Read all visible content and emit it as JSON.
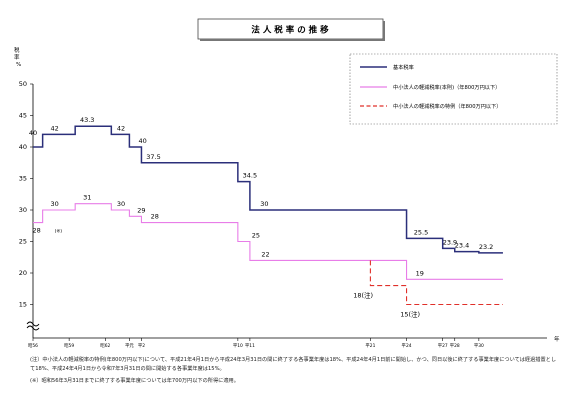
{
  "chart_data": {
    "type": "line",
    "title": "法 人 税 率 の 推 移",
    "ylabel": "税率\n%",
    "xlabel": "年",
    "ylim": [
      15,
      50
    ],
    "yticks": [
      15,
      20,
      25,
      30,
      35,
      40,
      45,
      50
    ],
    "axis_break": true,
    "grid": false,
    "legend_position": "top-right",
    "x_tick_labels": [
      {
        "label": "昭56",
        "year": 1981
      },
      {
        "label": "昭59",
        "year": 1984
      },
      {
        "label": "昭62",
        "year": 1987
      },
      {
        "label": "平元",
        "year": 1989
      },
      {
        "label": "平2",
        "year": 1990
      },
      {
        "label": "平10",
        "year": 1998
      },
      {
        "label": "平11",
        "year": 1999
      },
      {
        "label": "平21",
        "year": 2009
      },
      {
        "label": "平24",
        "year": 2012
      },
      {
        "label": "平27",
        "year": 2015
      },
      {
        "label": "平28",
        "year": 2016
      },
      {
        "label": "平30",
        "year": 2018
      }
    ],
    "x_range": [
      1981,
      2020
    ],
    "series": [
      {
        "name": "基本税率",
        "color": "#2b2f7a",
        "style": "solid",
        "points": [
          {
            "year": 1981,
            "value": 40
          },
          {
            "year": 1981.8,
            "value": 42
          },
          {
            "year": 1984.5,
            "value": 43.3
          },
          {
            "year": 1987.5,
            "value": 42
          },
          {
            "year": 1989,
            "value": 40
          },
          {
            "year": 1990,
            "value": 37.5
          },
          {
            "year": 1998,
            "value": 34.5
          },
          {
            "year": 1999,
            "value": 30
          },
          {
            "year": 2012,
            "value": 25.5
          },
          {
            "year": 2015,
            "value": 23.9
          },
          {
            "year": 2016,
            "value": 23.4
          },
          {
            "year": 2018,
            "value": 23.2
          }
        ],
        "end_year": 2020
      },
      {
        "name": "中小法人の軽減税率(本則)（年800万円以下）",
        "color": "#e87de8",
        "style": "solid",
        "points": [
          {
            "year": 1981,
            "value": 28
          },
          {
            "year": 1981.8,
            "value": 30
          },
          {
            "year": 1984.5,
            "value": 31
          },
          {
            "year": 1987.5,
            "value": 30
          },
          {
            "year": 1989,
            "value": 29
          },
          {
            "year": 1990,
            "value": 28
          },
          {
            "year": 1998,
            "value": 25
          },
          {
            "year": 1999,
            "value": 22
          },
          {
            "year": 2012,
            "value": 19
          }
        ],
        "end_year": 2020
      },
      {
        "name": "中小法人の軽減税率の特例（年800万円以下）",
        "color": "#e0302a",
        "style": "dashed",
        "points": [
          {
            "year": 2009,
            "value": 22
          },
          {
            "year": 2009,
            "value": 18
          },
          {
            "year": 2012,
            "value": 18
          },
          {
            "year": 2012,
            "value": 15
          }
        ],
        "end_year": 2020
      }
    ],
    "data_labels": [
      {
        "text": "40",
        "year": 1981,
        "value": 40
      },
      {
        "text": "42",
        "year": 1982.8,
        "value": 42
      },
      {
        "text": "43.3",
        "year": 1985.5,
        "value": 43.3
      },
      {
        "text": "42",
        "year": 1988.3,
        "value": 42
      },
      {
        "text": "40",
        "year": 1990.1,
        "value": 40
      },
      {
        "text": "37.5",
        "year": 1991,
        "value": 37.5
      },
      {
        "text": "34.5",
        "year": 1999,
        "value": 34.5
      },
      {
        "text": "30",
        "year": 2000.2,
        "value": 30
      },
      {
        "text": "25.5",
        "year": 2013.2,
        "value": 25.5
      },
      {
        "text": "23.9",
        "year": 2015.6,
        "value": 23.9
      },
      {
        "text": "23.4",
        "year": 2016.6,
        "value": 23.4
      },
      {
        "text": "23.2",
        "year": 2018.6,
        "value": 23.2
      },
      {
        "text": "30",
        "year": 1982.8,
        "value": 30
      },
      {
        "text": "31",
        "year": 1985.5,
        "value": 31
      },
      {
        "text": "30",
        "year": 1988.3,
        "value": 30
      },
      {
        "text": "29",
        "year": 1990,
        "value": 29
      },
      {
        "text": "28",
        "year": 1991.1,
        "value": 28
      },
      {
        "text": "28",
        "year": 1981.3,
        "value": 28
      },
      {
        "text": "(※)",
        "year": 1983.1,
        "value": 28
      },
      {
        "text": "25",
        "year": 1999.5,
        "value": 25
      },
      {
        "text": "22",
        "year": 2000.3,
        "value": 22
      },
      {
        "text": "19",
        "year": 2013.1,
        "value": 19
      },
      {
        "text": "18(注)",
        "year": 2008.4,
        "value": 18
      },
      {
        "text": "15(注)",
        "year": 2012.3,
        "value": 15
      }
    ]
  },
  "footnotes": {
    "note1": "(注）中小法人の軽減税率の特例(年800万円以下)について、平成21年4月1日から平成24年3月31日の間に終了する各事業年度は18%、平成24年4月1日前に開始し、かつ、同日以後に終了する事業年度については経過措置として18%、平成24年4月1日から令和7年3月31日の間に開始する各事業年度は15%。",
    "note2": "(※）昭和56年3月31日までに終了する事業年度については年700万円以下の所得に適用。"
  }
}
